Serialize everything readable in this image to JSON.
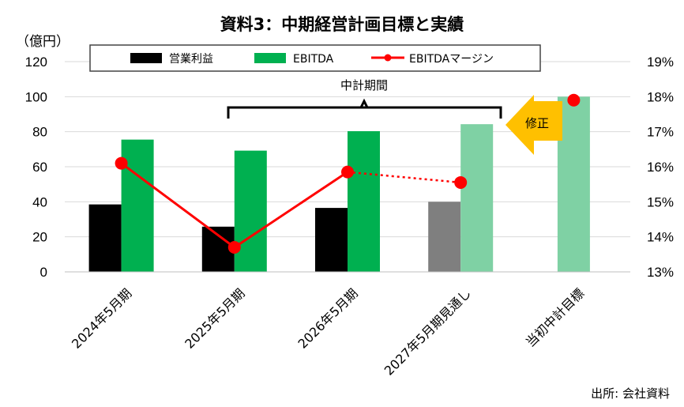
{
  "chart_data": {
    "type": "bar",
    "title": "資料3：中期経営計画目標と実績",
    "y_unit_label": "（億円）",
    "categories": [
      "2024年5月期",
      "2025年5月期",
      "2026年5月期",
      "2027年5月期見通し",
      "当初中計目標"
    ],
    "ylim": [
      0,
      120
    ],
    "y_ticks": [
      "0",
      "20",
      "40",
      "60",
      "80",
      "100",
      "120"
    ],
    "y2lim": [
      13,
      19
    ],
    "y2_ticks": [
      "13%",
      "14%",
      "15%",
      "16%",
      "17%",
      "18%",
      "19%"
    ],
    "series": [
      {
        "name": "営業利益",
        "type": "bar",
        "color": "#000000",
        "forecast_color": "#7f7f7f",
        "values": [
          38.5,
          25.8,
          36.5,
          40.0,
          null
        ]
      },
      {
        "name": "EBITDA",
        "type": "bar",
        "color": "#00b050",
        "forecast_color": "#7fd1a4",
        "values": [
          75.5,
          69.2,
          80.3,
          84.3,
          100.0
        ]
      },
      {
        "name": "EBITDAマージン",
        "type": "line",
        "axis": "right",
        "color": "#ff0000",
        "values": [
          16.1,
          13.7,
          15.85,
          15.55,
          17.9
        ]
      }
    ],
    "legend_position": "top",
    "grid": "horizontal",
    "annotations": {
      "bracket_label": "中計期間",
      "arrow_label": "修正"
    },
    "source": "出所: 会社資料"
  }
}
